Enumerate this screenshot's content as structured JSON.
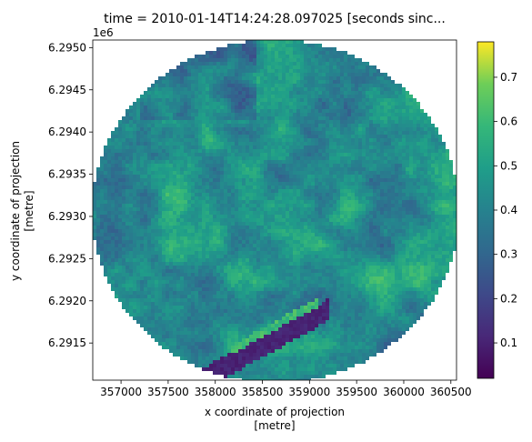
{
  "chart_data": {
    "type": "heatmap",
    "title": "time = 2010-01-14T14:24:28.097025 [seconds sinc...",
    "xlabel": [
      "x coordinate of projection",
      "[metre]"
    ],
    "ylabel": [
      "y coordinate of projection",
      "[metre]"
    ],
    "y_offset_label": "1e6",
    "xlim": [
      356700,
      360560
    ],
    "ylim": [
      6.29106,
      6.29509
    ],
    "x_ticks": [
      357000,
      357500,
      358000,
      358500,
      359000,
      359500,
      360000,
      360500
    ],
    "x_tick_labels": [
      "357000",
      "357500",
      "358000",
      "358500",
      "359000",
      "359500",
      "360000",
      "360500"
    ],
    "y_ticks": [
      6.2915,
      6.292,
      6.2925,
      6.293,
      6.2935,
      6.294,
      6.2945,
      6.295
    ],
    "y_tick_labels": [
      "6.2915",
      "6.2920",
      "6.2925",
      "6.2930",
      "6.2935",
      "6.2940",
      "6.2945",
      "6.2950"
    ],
    "colormap": "viridis",
    "colorbar": {
      "range": [
        0.02,
        0.78
      ],
      "ticks": [
        0.1,
        0.2,
        0.3,
        0.4,
        0.5,
        0.6,
        0.7
      ],
      "tick_labels": [
        "0.1",
        "0.2",
        "0.3",
        "0.4",
        "0.5",
        "0.6",
        "0.7"
      ]
    },
    "footprint": {
      "shape": "circle",
      "center_x": 358640,
      "center_y": 6.29306,
      "radius_x": 1950,
      "radius_y": 0.002035,
      "outside": "no data"
    },
    "grid": false,
    "legend": "none"
  }
}
